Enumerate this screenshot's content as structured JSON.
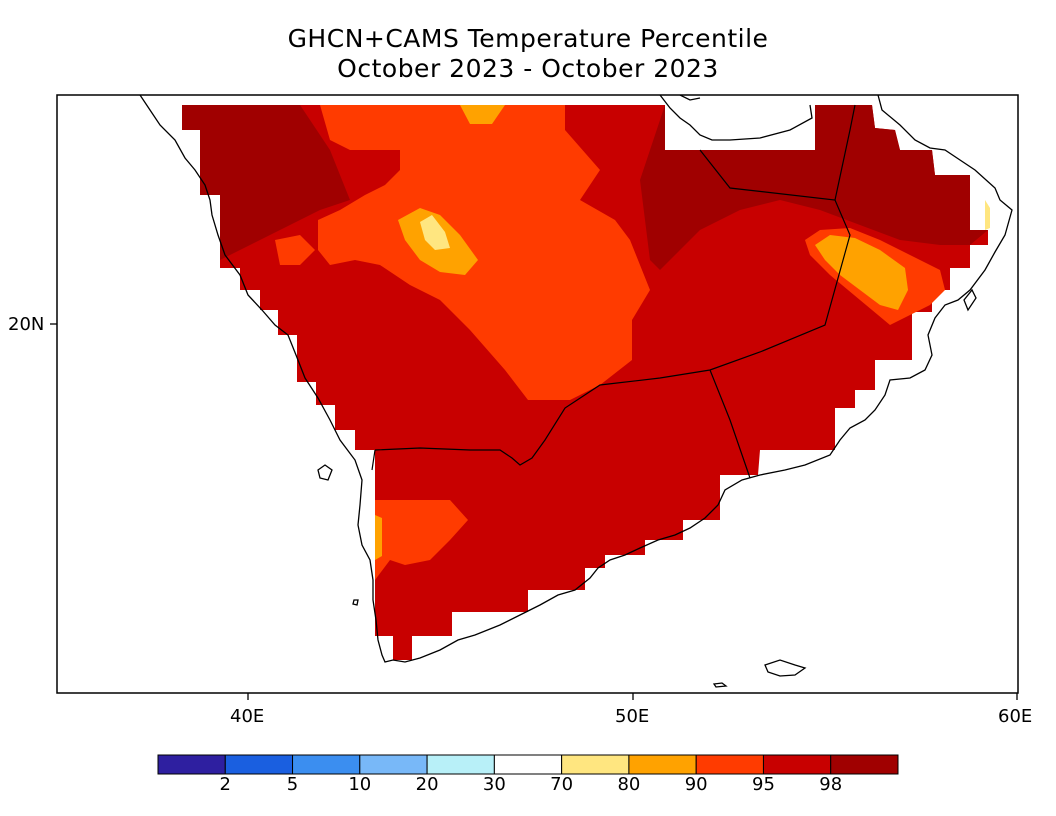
{
  "title": {
    "line1": "GHCN+CAMS Temperature Percentile",
    "line2": "October 2023 - October 2023"
  },
  "axes": {
    "x_ticks": [
      "40E",
      "50E",
      "60E"
    ],
    "y_ticks": [
      "20N"
    ]
  },
  "colorbar": {
    "labels": [
      "2",
      "5",
      "10",
      "20",
      "30",
      "70",
      "80",
      "90",
      "95",
      "98"
    ],
    "colors": [
      "#2e1fa0",
      "#1a5fe0",
      "#3b8ef0",
      "#78b8f8",
      "#b8f0f8",
      "#ffffff",
      "#ffe680",
      "#ffa200",
      "#ff3b00",
      "#c80000",
      "#a00000"
    ]
  },
  "map_colors": {
    "p98_plus": "#a00000",
    "p95_98": "#c80000",
    "p90_95": "#ff3b00",
    "p80_90": "#ffa200",
    "p70_80": "#ffe680"
  }
}
